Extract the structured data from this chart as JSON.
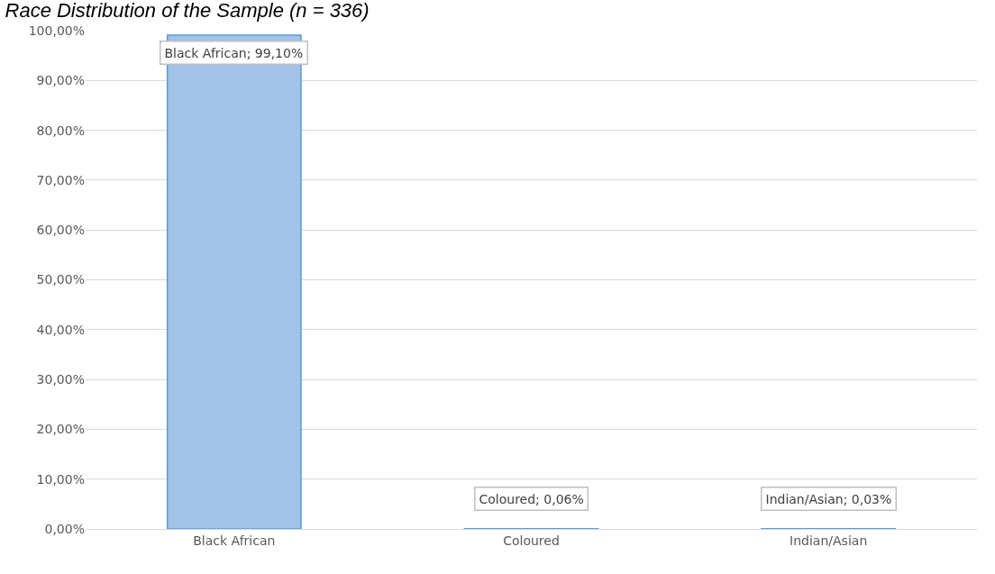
{
  "chart_data": {
    "type": "bar",
    "title": "Race Distribution of the Sample (n = 336)",
    "categories": [
      "Black African",
      "Coloured",
      "Indian/Asian"
    ],
    "values": [
      99.1,
      0.06,
      0.03
    ],
    "value_labels": [
      "Black African; 99,10%",
      "Coloured; 0,06%",
      "Indian/Asian; 0,03%"
    ],
    "color": "#a3c2e8",
    "ylim": [
      0,
      100
    ],
    "yticks": [
      {
        "value": 0,
        "label": "0,00%"
      },
      {
        "value": 10,
        "label": "10,00%"
      },
      {
        "value": 20,
        "label": "20,00%"
      },
      {
        "value": 30,
        "label": "30,00%"
      },
      {
        "value": 40,
        "label": "40,00%"
      },
      {
        "value": 50,
        "label": "50,00%"
      },
      {
        "value": 60,
        "label": "60,00%"
      },
      {
        "value": 70,
        "label": "70,00%"
      },
      {
        "value": 80,
        "label": "80,00%"
      },
      {
        "value": 90,
        "label": "90,00%"
      },
      {
        "value": 100,
        "label": "100,00%"
      }
    ],
    "grid": "y"
  }
}
